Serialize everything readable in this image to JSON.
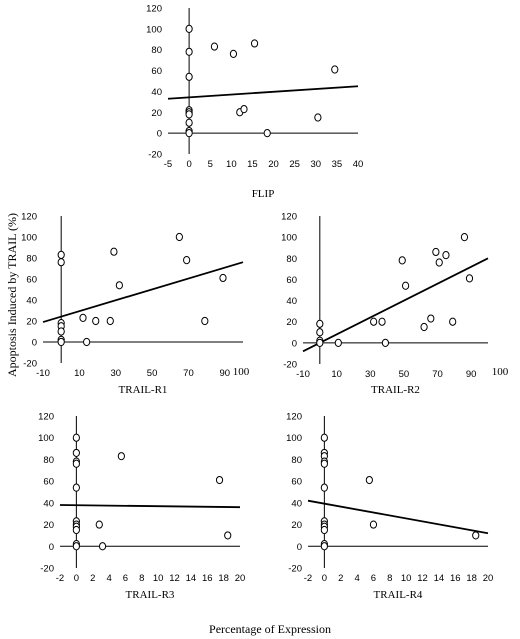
{
  "figure": {
    "ylabel": "Apoptosis Induced by TRAIL (%)",
    "xlabel": "Percentage of Expression"
  },
  "chart_data": [
    {
      "type": "scatter",
      "id": "flip",
      "xlabel": "FLIP",
      "xlim": [
        -5,
        40
      ],
      "ylim": [
        -20,
        120
      ],
      "xticks": [
        -5,
        0,
        5,
        10,
        15,
        20,
        25,
        30,
        35,
        40
      ],
      "yticks": [
        -20,
        0,
        20,
        40,
        60,
        80,
        100,
        120
      ],
      "points": [
        {
          "x": 0,
          "y": 100
        },
        {
          "x": 0,
          "y": 78
        },
        {
          "x": 0,
          "y": 54
        },
        {
          "x": 0,
          "y": 22
        },
        {
          "x": 0,
          "y": 20
        },
        {
          "x": 0,
          "y": 18
        },
        {
          "x": 0,
          "y": 10
        },
        {
          "x": 0,
          "y": 2
        },
        {
          "x": 0,
          "y": 0
        },
        {
          "x": 6,
          "y": 83
        },
        {
          "x": 10.5,
          "y": 76
        },
        {
          "x": 12,
          "y": 20
        },
        {
          "x": 13,
          "y": 23
        },
        {
          "x": 15.5,
          "y": 86
        },
        {
          "x": 18.5,
          "y": 0
        },
        {
          "x": 30.5,
          "y": 15
        },
        {
          "x": 34.5,
          "y": 61
        }
      ],
      "fit_line": {
        "x": [
          -5,
          40
        ],
        "y": [
          33,
          45
        ]
      }
    },
    {
      "type": "scatter",
      "id": "trail-r1",
      "xlabel": "TRAIL-R1",
      "xlim": [
        -10,
        100
      ],
      "ylim": [
        -20,
        120
      ],
      "xticks": [
        -10,
        10,
        30,
        50,
        70,
        90
      ],
      "yticks": [
        -20,
        0,
        20,
        40,
        60,
        80,
        100,
        120
      ],
      "extra_tick": "100",
      "points": [
        {
          "x": 0,
          "y": 83
        },
        {
          "x": 0,
          "y": 76
        },
        {
          "x": 0,
          "y": 18
        },
        {
          "x": 0,
          "y": 15
        },
        {
          "x": 0,
          "y": 10
        },
        {
          "x": 0,
          "y": 2
        },
        {
          "x": 0,
          "y": 0
        },
        {
          "x": 12,
          "y": 23
        },
        {
          "x": 14,
          "y": 0
        },
        {
          "x": 19,
          "y": 20
        },
        {
          "x": 27,
          "y": 20
        },
        {
          "x": 29,
          "y": 86
        },
        {
          "x": 32,
          "y": 54
        },
        {
          "x": 65,
          "y": 100
        },
        {
          "x": 69,
          "y": 78
        },
        {
          "x": 79,
          "y": 20
        },
        {
          "x": 89,
          "y": 61
        }
      ],
      "fit_line": {
        "x": [
          -10,
          100
        ],
        "y": [
          19,
          76
        ]
      }
    },
    {
      "type": "scatter",
      "id": "trail-r2",
      "xlabel": "TRAIL-R2",
      "xlim": [
        -10,
        100
      ],
      "ylim": [
        -20,
        120
      ],
      "xticks": [
        -10,
        10,
        30,
        50,
        70,
        90
      ],
      "yticks": [
        -20,
        0,
        20,
        40,
        60,
        80,
        100,
        120
      ],
      "extra_tick": "100",
      "points": [
        {
          "x": 0,
          "y": 18
        },
        {
          "x": 0,
          "y": 10
        },
        {
          "x": 0,
          "y": 2
        },
        {
          "x": 0,
          "y": 0
        },
        {
          "x": 11,
          "y": 0
        },
        {
          "x": 32,
          "y": 20
        },
        {
          "x": 37,
          "y": 20
        },
        {
          "x": 39,
          "y": 0
        },
        {
          "x": 49,
          "y": 78
        },
        {
          "x": 51,
          "y": 54
        },
        {
          "x": 62,
          "y": 15
        },
        {
          "x": 66,
          "y": 23
        },
        {
          "x": 69,
          "y": 86
        },
        {
          "x": 71,
          "y": 76
        },
        {
          "x": 75,
          "y": 83
        },
        {
          "x": 79,
          "y": 20
        },
        {
          "x": 86,
          "y": 100
        },
        {
          "x": 89,
          "y": 61
        }
      ],
      "fit_line": {
        "x": [
          -10,
          100
        ],
        "y": [
          -8,
          80
        ]
      }
    },
    {
      "type": "scatter",
      "id": "trail-r3",
      "xlabel": "TRAIL-R3",
      "xlim": [
        -2,
        20
      ],
      "ylim": [
        -20,
        120
      ],
      "xticks": [
        -2,
        0,
        2,
        4,
        6,
        8,
        10,
        12,
        14,
        16,
        18,
        20
      ],
      "yticks": [
        -20,
        0,
        20,
        40,
        60,
        80,
        100,
        120
      ],
      "points": [
        {
          "x": 0,
          "y": 100
        },
        {
          "x": 0,
          "y": 86
        },
        {
          "x": 0,
          "y": 78
        },
        {
          "x": 0,
          "y": 76
        },
        {
          "x": 0,
          "y": 54
        },
        {
          "x": 0,
          "y": 23
        },
        {
          "x": 0,
          "y": 20
        },
        {
          "x": 0,
          "y": 18
        },
        {
          "x": 0,
          "y": 15
        },
        {
          "x": 0,
          "y": 2
        },
        {
          "x": 0,
          "y": 0
        },
        {
          "x": 2.8,
          "y": 20
        },
        {
          "x": 3.2,
          "y": 0
        },
        {
          "x": 5.5,
          "y": 83
        },
        {
          "x": 17.5,
          "y": 61
        },
        {
          "x": 18.5,
          "y": 10
        }
      ],
      "fit_line": {
        "x": [
          -2,
          20
        ],
        "y": [
          38,
          36
        ]
      }
    },
    {
      "type": "scatter",
      "id": "trail-r4",
      "xlabel": "TRAIL-R4",
      "xlim": [
        -2,
        20
      ],
      "ylim": [
        -20,
        120
      ],
      "xticks": [
        -2,
        0,
        2,
        4,
        6,
        8,
        10,
        12,
        14,
        16,
        18,
        20
      ],
      "yticks": [
        -20,
        0,
        20,
        40,
        60,
        80,
        100,
        120
      ],
      "points": [
        {
          "x": 0,
          "y": 100
        },
        {
          "x": 0,
          "y": 86
        },
        {
          "x": 0,
          "y": 83
        },
        {
          "x": 0,
          "y": 78
        },
        {
          "x": 0,
          "y": 76
        },
        {
          "x": 0,
          "y": 54
        },
        {
          "x": 0,
          "y": 23
        },
        {
          "x": 0,
          "y": 20
        },
        {
          "x": 0,
          "y": 18
        },
        {
          "x": 0,
          "y": 15
        },
        {
          "x": 0,
          "y": 2
        },
        {
          "x": 0,
          "y": 0
        },
        {
          "x": 5.5,
          "y": 61
        },
        {
          "x": 6,
          "y": 20
        },
        {
          "x": 18.5,
          "y": 10
        }
      ],
      "fit_line": {
        "x": [
          -2,
          20
        ],
        "y": [
          42,
          12
        ]
      }
    }
  ]
}
